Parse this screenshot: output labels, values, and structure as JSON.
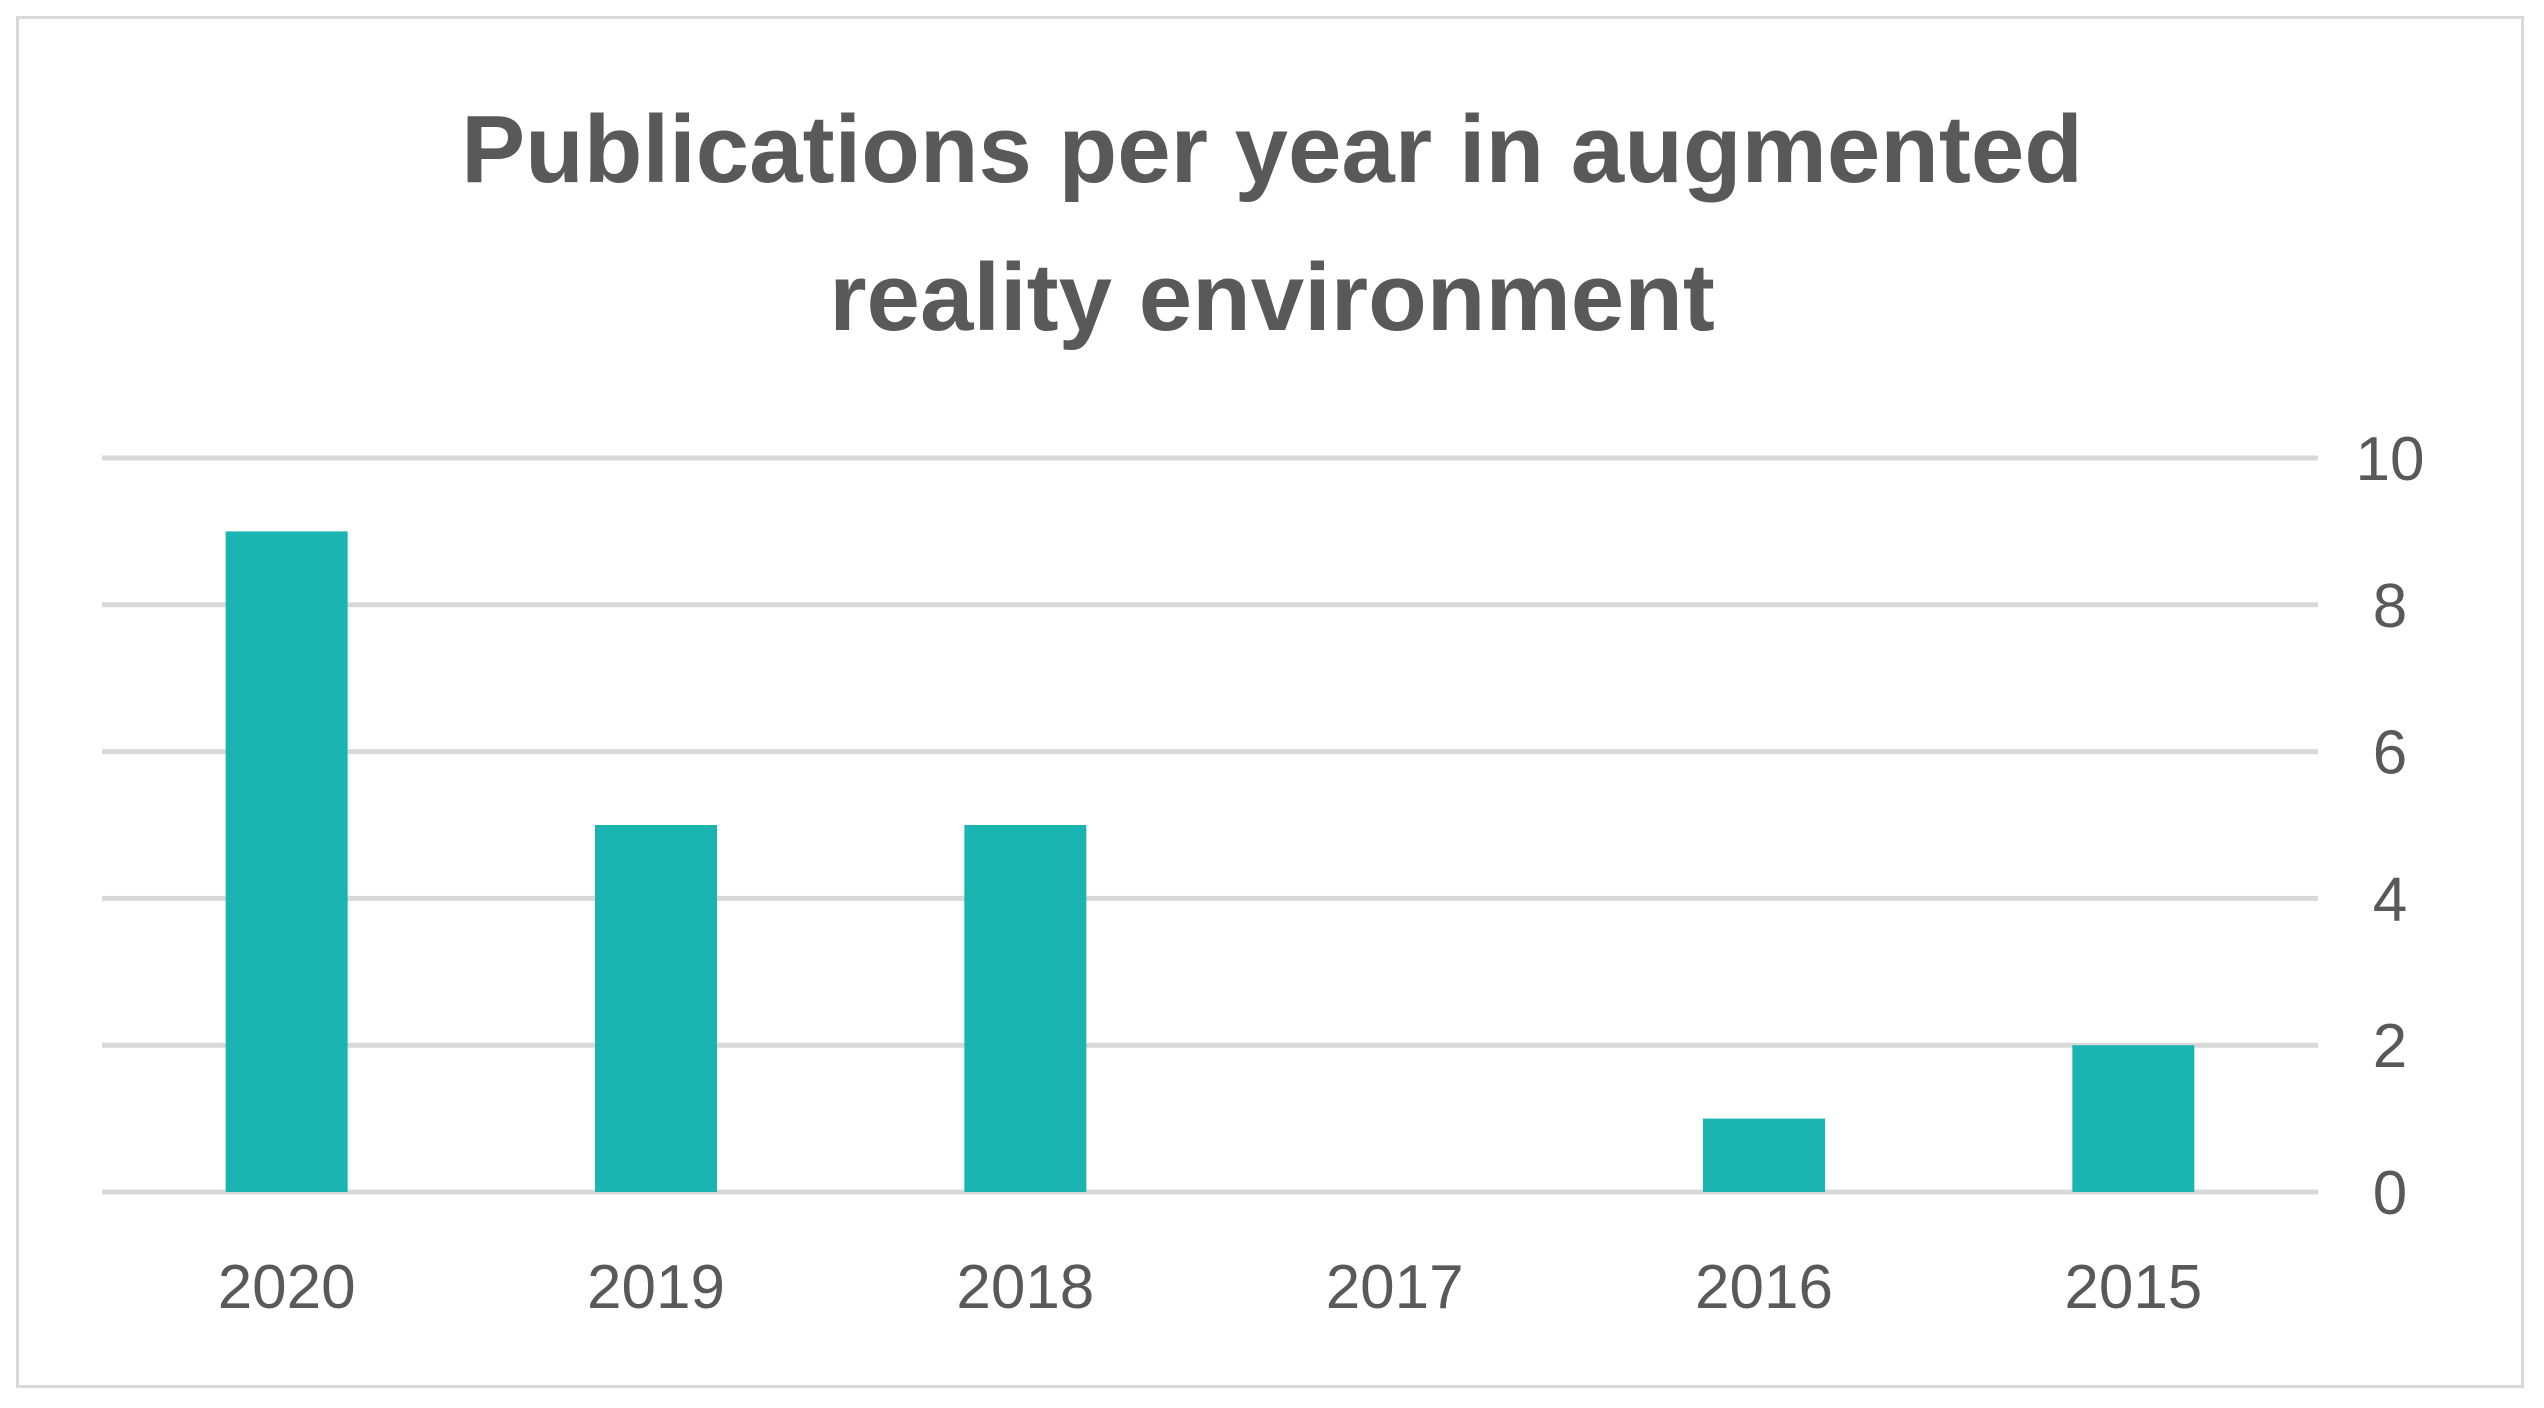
{
  "chart_data": {
    "type": "bar",
    "title_lines": [
      "Publications per year in augmented",
      "reality environment"
    ],
    "categories": [
      "2020",
      "2019",
      "2018",
      "2017",
      "2016",
      "2015"
    ],
    "series": [
      {
        "name": "Publications",
        "values": [
          9,
          5,
          5,
          0,
          1,
          2
        ]
      }
    ],
    "xlabel": "",
    "ylabel": "",
    "ylim": [
      0,
      10
    ],
    "yticks": [
      "0",
      "2",
      "4",
      "6",
      "8",
      "10"
    ],
    "y_axis_side": "right",
    "grid": true,
    "legend": "none",
    "colors": {
      "bar": "#1bb5b1",
      "grid": "#d9d9d9",
      "text": "#595959",
      "border": "#d9d9d9"
    }
  }
}
